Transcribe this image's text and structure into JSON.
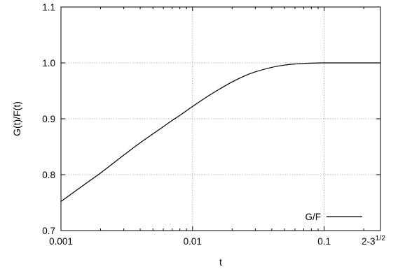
{
  "chart_data": {
    "type": "line",
    "title": "",
    "xlabel": "t",
    "ylabel": "G(t)/F(t)",
    "xscale": "log",
    "xlim": [
      0.001,
      0.267949
    ],
    "ylim": [
      0.7,
      1.1
    ],
    "grid": true,
    "legend_position": "bottom-right",
    "x_ticks": [
      {
        "value": 0.001,
        "label": "0.001"
      },
      {
        "value": 0.01,
        "label": "0.01"
      },
      {
        "value": 0.1,
        "label": "0.1"
      }
    ],
    "x_tick_end": {
      "value": 0.267949,
      "base": "2-3",
      "exponent": "1/2"
    },
    "y_ticks": [
      {
        "value": 0.7,
        "label": "0.7"
      },
      {
        "value": 0.8,
        "label": "0.8"
      },
      {
        "value": 0.9,
        "label": "0.9"
      },
      {
        "value": 1.0,
        "label": "1.0"
      },
      {
        "value": 1.1,
        "label": "1.1"
      }
    ],
    "series": [
      {
        "name": "G/F",
        "color": "#000000",
        "x": [
          0.001,
          0.0015,
          0.002,
          0.003,
          0.004,
          0.005,
          0.006,
          0.007,
          0.008,
          0.01,
          0.013,
          0.016,
          0.02,
          0.025,
          0.03,
          0.04,
          0.05,
          0.06,
          0.07,
          0.08,
          0.1,
          0.12,
          0.15,
          0.2,
          0.267949
        ],
        "y": [
          0.752,
          0.782,
          0.803,
          0.835,
          0.857,
          0.873,
          0.886,
          0.897,
          0.906,
          0.922,
          0.94,
          0.953,
          0.966,
          0.977,
          0.984,
          0.992,
          0.996,
          0.998,
          0.999,
          0.9995,
          1.0,
          1.0,
          1.0,
          1.0,
          1.0
        ]
      }
    ]
  }
}
